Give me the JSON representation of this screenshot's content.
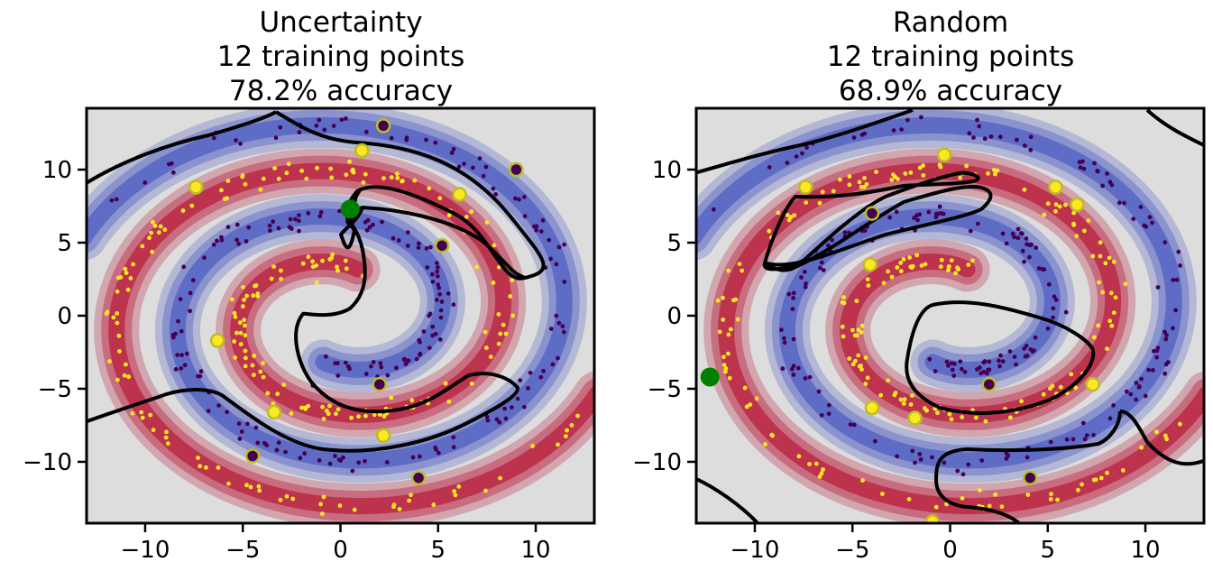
{
  "chart_data": [
    {
      "type": "scatter",
      "panel": "uncertainty",
      "title_lines": [
        "Uncertainty",
        "12 training points",
        "78.2% accuracy"
      ],
      "xlabel": "",
      "ylabel": "",
      "xlim": [
        -13,
        13
      ],
      "ylim": [
        -14.2,
        14.2
      ],
      "xticks": [
        -10,
        -5,
        0,
        5,
        10
      ],
      "yticks": [
        -10,
        -5,
        0,
        5,
        10
      ],
      "xticklabels": [
        "−10",
        "−5",
        "0",
        "5",
        "10"
      ],
      "yticklabels": [
        "−10",
        "−5",
        "0",
        "5",
        "10"
      ],
      "grid": false,
      "legend": "none",
      "colors": {
        "class_positive": "#fde725",
        "class_negative": "#440154",
        "density_positive": "#b40426",
        "density_negative": "#3b4cc0",
        "background": "#dddddd",
        "boundary": "#000000",
        "query_point": "#008000",
        "training_ring": "#bcbd22"
      },
      "training_points": [
        {
          "x": 2.2,
          "y": 13.0,
          "class": 0
        },
        {
          "x": 9.0,
          "y": 10.0,
          "class": 0
        },
        {
          "x": 5.2,
          "y": 4.8,
          "class": 0
        },
        {
          "x": 2.0,
          "y": -4.7,
          "class": 0
        },
        {
          "x": 4.0,
          "y": -11.1,
          "class": 0
        },
        {
          "x": -4.5,
          "y": -9.6,
          "class": 0
        },
        {
          "x": 1.1,
          "y": 11.3,
          "class": 1
        },
        {
          "x": 6.1,
          "y": 8.3,
          "class": 1
        },
        {
          "x": -7.4,
          "y": 8.8,
          "class": 1
        },
        {
          "x": -6.3,
          "y": -1.7,
          "class": 1
        },
        {
          "x": -3.4,
          "y": -6.6,
          "class": 1
        },
        {
          "x": 2.2,
          "y": -8.2,
          "class": 1
        }
      ],
      "query_point": {
        "x": 0.5,
        "y": 7.3
      }
    },
    {
      "type": "scatter",
      "panel": "random",
      "title_lines": [
        "Random",
        "12 training points",
        "68.9% accuracy"
      ],
      "xlabel": "",
      "ylabel": "",
      "xlim": [
        -13,
        13
      ],
      "ylim": [
        -14.2,
        14.2
      ],
      "xticks": [
        -10,
        -5,
        0,
        5,
        10
      ],
      "yticks": [
        -10,
        -5,
        0,
        5,
        10
      ],
      "xticklabels": [
        "−10",
        "−5",
        "0",
        "5",
        "10"
      ],
      "yticklabels": [
        "−10",
        "−5",
        "0",
        "5",
        "10"
      ],
      "grid": false,
      "legend": "none",
      "colors": {
        "class_positive": "#fde725",
        "class_negative": "#440154",
        "density_positive": "#b40426",
        "density_negative": "#3b4cc0",
        "background": "#dddddd",
        "boundary": "#000000",
        "query_point": "#008000",
        "training_ring": "#bcbd22"
      },
      "training_points": [
        {
          "x": -4.0,
          "y": 7.0,
          "class": 0
        },
        {
          "x": 2.0,
          "y": -4.7,
          "class": 0
        },
        {
          "x": 4.1,
          "y": -11.1,
          "class": 0
        },
        {
          "x": -0.3,
          "y": 11.0,
          "class": 1
        },
        {
          "x": 5.4,
          "y": 8.8,
          "class": 1
        },
        {
          "x": 6.5,
          "y": 7.6,
          "class": 1
        },
        {
          "x": -7.4,
          "y": 8.8,
          "class": 1
        },
        {
          "x": -4.1,
          "y": 3.5,
          "class": 1
        },
        {
          "x": -4.0,
          "y": -6.3,
          "class": 1
        },
        {
          "x": -1.8,
          "y": -7.0,
          "class": 1
        },
        {
          "x": 7.3,
          "y": -4.7,
          "class": 1
        },
        {
          "x": -0.9,
          "y": -14.1,
          "class": 1
        }
      ],
      "query_point": {
        "x": -12.3,
        "y": -4.2
      }
    }
  ]
}
